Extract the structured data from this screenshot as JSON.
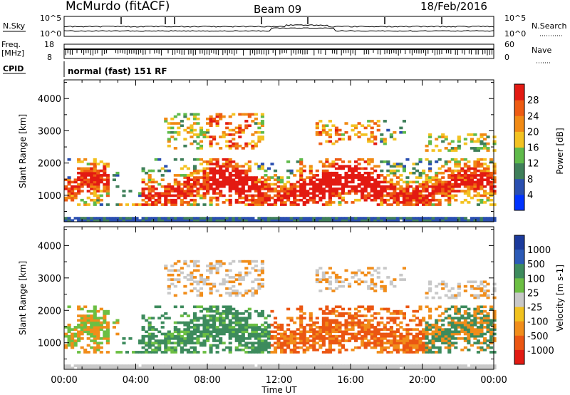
{
  "header": {
    "station": "McMurdo (fitACF)",
    "beam": "Beam 09",
    "date": "18/Feb/2016"
  },
  "noise_panel": {
    "left_label": "N.Sky",
    "right_label": "N.Search",
    "ticks_left": [
      "10^5",
      "10^0"
    ],
    "ticks_right": [
      "10^5",
      "10^0"
    ]
  },
  "freq_panel": {
    "left_label_1": "Freq.",
    "left_label_2": "[MHz]",
    "right_label": "Nave",
    "ticks_left": [
      "18",
      "8"
    ],
    "ticks_right": [
      "60",
      "0"
    ]
  },
  "cpid_panel": {
    "label": "CPID",
    "text": "normal (fast) 151 RF"
  },
  "colors": {
    "power": [
      "#0033ff",
      "#2a4fb0",
      "#3f7f5a",
      "#5fba4a",
      "#f3c221",
      "#f18a14",
      "#ee5b12",
      "#e31a12"
    ],
    "velocity": [
      "#1b3a9c",
      "#2c5bb7",
      "#3d8b5d",
      "#6cbf43",
      "#c8c8c8",
      "#f1c21e",
      "#f18d1a",
      "#eb5612",
      "#e21a12"
    ]
  },
  "chart_data": [
    {
      "type": "heatmap",
      "title": "Power",
      "ylabel": "Slant Range [km]",
      "xlabel": "",
      "x_ticks": [
        "00:00",
        "04:00",
        "08:00",
        "12:00",
        "16:00",
        "20:00",
        "00:00"
      ],
      "y_ticks": [
        1000,
        2000,
        3000,
        4000
      ],
      "ylim": [
        180,
        4580
      ],
      "xlim": [
        0,
        24
      ],
      "colorbar_label": "Power [dB]",
      "colorbar_ticks": [
        4,
        8,
        12,
        16,
        20,
        24,
        28
      ],
      "colorbar_range": [
        0,
        32
      ]
    },
    {
      "type": "heatmap",
      "title": "Velocity",
      "ylabel": "Slant Range [km]",
      "xlabel": "Time UT",
      "x_ticks": [
        "00:00",
        "04:00",
        "08:00",
        "12:00",
        "16:00",
        "20:00",
        "00:00"
      ],
      "y_ticks": [
        1000,
        2000,
        3000,
        4000
      ],
      "ylim": [
        180,
        4580
      ],
      "xlim": [
        0,
        24
      ],
      "colorbar_label": "Velocity [m s-1]",
      "colorbar_ticks": [
        "1000",
        "500",
        "100",
        "25",
        "-25",
        "-100",
        "-500",
        "-1000"
      ]
    }
  ]
}
